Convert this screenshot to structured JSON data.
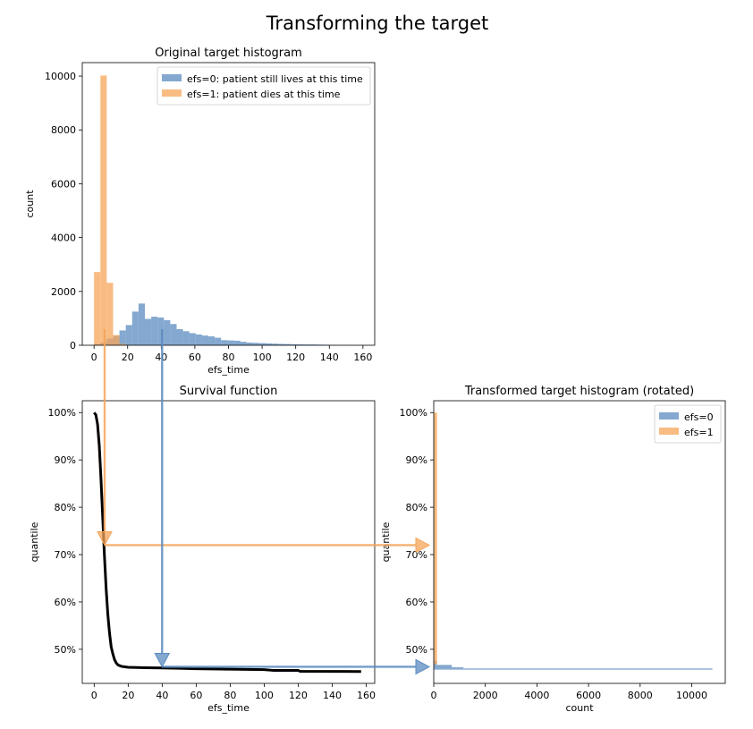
{
  "figure": {
    "suptitle": "Transforming the target"
  },
  "colors": {
    "efs0": "#5b8bbf",
    "efs1": "#f5a55a",
    "survival_line": "#000000",
    "arrow_orange": "#f5a55a",
    "arrow_blue": "#5b8bbf"
  },
  "chart_data": [
    {
      "type": "bar",
      "title": "Original target histogram",
      "xlabel": "efs_time",
      "ylabel": "count",
      "xlim": [
        -7,
        167
      ],
      "ylim": [
        0,
        10500
      ],
      "xticks": [
        0,
        20,
        40,
        60,
        80,
        100,
        120,
        140,
        160
      ],
      "yticks": [
        0,
        2000,
        4000,
        6000,
        8000,
        10000
      ],
      "legend_position": "top-right",
      "series": [
        {
          "name": "efs=0: patient still lives at this time",
          "bin_width": 3.78,
          "bins_start": 0,
          "values": [
            40,
            100,
            250,
            350,
            550,
            750,
            1250,
            1550,
            980,
            1060,
            1030,
            930,
            790,
            600,
            520,
            450,
            400,
            360,
            330,
            280,
            190,
            180,
            170,
            130,
            100,
            90,
            80,
            70,
            60,
            50,
            45,
            40,
            35,
            30,
            30,
            25,
            20,
            15,
            10,
            8,
            5
          ]
        },
        {
          "name": "efs=1: patient dies at this time",
          "bin_width": 3.78,
          "bins_start": 0,
          "values": [
            2720,
            10020,
            2320,
            380,
            50,
            10
          ]
        }
      ]
    },
    {
      "type": "line",
      "title": "Survival function",
      "xlabel": "efs_time",
      "ylabel": "quantile",
      "xlim": [
        -7,
        165
      ],
      "ylim": [
        0.428,
        1.025
      ],
      "xticks": [
        0,
        20,
        40,
        60,
        80,
        100,
        120,
        140,
        160
      ],
      "yticks": [
        0.5,
        0.6,
        0.7,
        0.8,
        0.9,
        1.0
      ],
      "ytick_labels": [
        "50%",
        "60%",
        "70%",
        "80%",
        "90%",
        "100%"
      ],
      "series": [
        {
          "x": [
            0,
            1,
            2,
            3,
            4,
            5,
            6,
            7,
            8,
            9,
            10,
            11,
            12,
            13,
            14,
            16,
            18,
            20,
            25,
            30,
            40,
            50,
            60,
            80,
            100,
            105,
            110,
            120,
            121,
            140,
            157
          ],
          "y": [
            1.0,
            0.995,
            0.975,
            0.93,
            0.86,
            0.78,
            0.7,
            0.63,
            0.575,
            0.535,
            0.505,
            0.49,
            0.478,
            0.471,
            0.467,
            0.464,
            0.463,
            0.462,
            0.4615,
            0.461,
            0.4605,
            0.4598,
            0.459,
            0.458,
            0.457,
            0.4555,
            0.4555,
            0.4555,
            0.4535,
            0.4533,
            0.453
          ]
        }
      ]
    },
    {
      "type": "bar",
      "title": "Transformed target histogram (rotated)",
      "xlabel": "count",
      "ylabel": "quantile",
      "orientation": "horizontal",
      "xlim": [
        0,
        11300
      ],
      "ylim": [
        0.428,
        1.025
      ],
      "xticks": [
        0,
        2000,
        4000,
        6000,
        8000,
        10000
      ],
      "yticks": [
        0.5,
        0.6,
        0.7,
        0.8,
        0.9,
        1.0
      ],
      "ytick_labels": [
        "50%",
        "60%",
        "70%",
        "80%",
        "90%",
        "100%"
      ],
      "legend_position": "top-right",
      "series": [
        {
          "name": "efs=0",
          "bins": [
            [
              0.457,
              0.4595,
              10800
            ],
            [
              0.4595,
              0.462,
              1150
            ],
            [
              0.462,
              0.467,
              700
            ],
            [
              0.467,
              0.4755,
              120
            ]
          ]
        },
        {
          "name": "efs=1",
          "bins": [
            [
              0.4685,
              1.0,
              130
            ]
          ]
        }
      ]
    }
  ],
  "annotations": {
    "orange_arrow": {
      "x_efs_time": 6.3,
      "quantile": 0.72
    },
    "blue_arrow": {
      "x_efs_time": 40.5,
      "quantile": 0.463
    }
  }
}
